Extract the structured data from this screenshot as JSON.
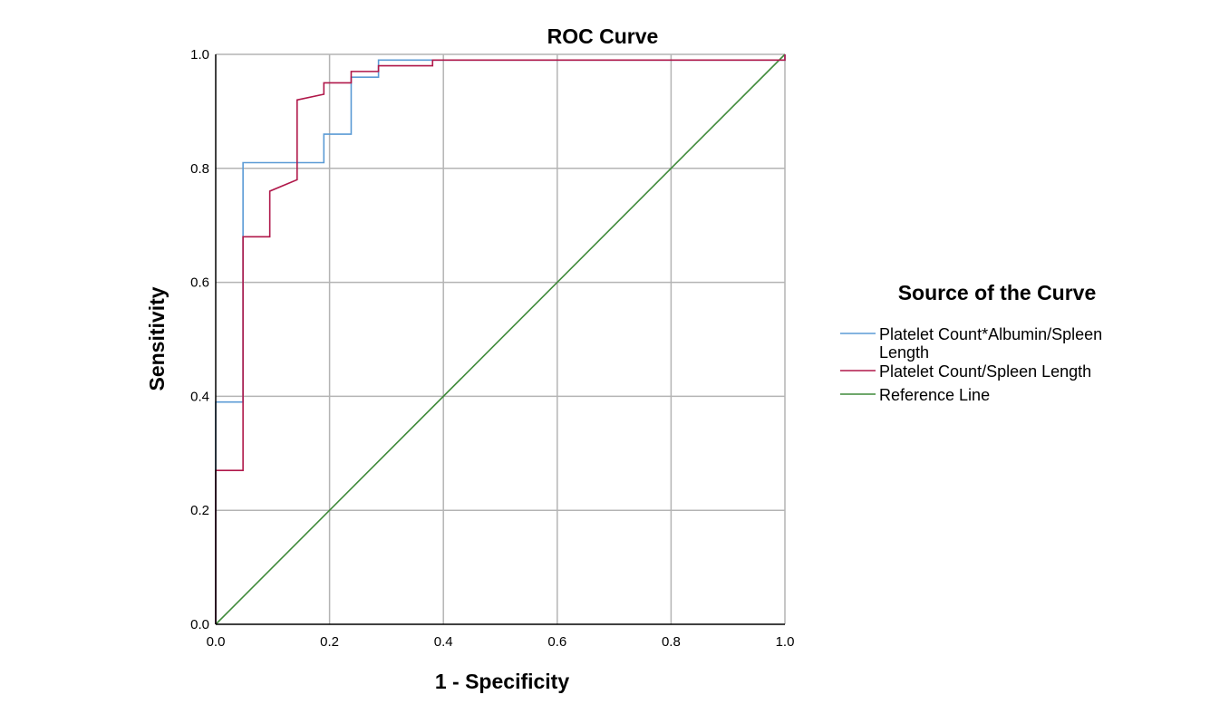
{
  "chart_data": {
    "type": "line",
    "title": "ROC Curve",
    "xlabel": "1 - Specificity",
    "ylabel": "Sensitivity",
    "xlim": [
      0,
      1
    ],
    "ylim": [
      0,
      1
    ],
    "xticks": [
      "0.0",
      "0.2",
      "0.4",
      "0.6",
      "0.8",
      "1.0"
    ],
    "yticks": [
      "0.0",
      "0.2",
      "0.4",
      "0.6",
      "0.8",
      "1.0"
    ],
    "grid": true,
    "legend": {
      "title": "Source of the Curve",
      "placement": "right"
    },
    "series": [
      {
        "name": "Platelet Count*Albumin/Spleen Length",
        "name_lines": [
          "Platelet Count*Albumin/Spleen",
          "Length"
        ],
        "color": "#5b9bd5",
        "x": [
          0,
          0,
          0,
          0.048,
          0.048,
          0.19,
          0.19,
          0.238,
          0.238,
          0.286,
          0.286,
          0.381,
          0.381,
          1.0,
          1.0
        ],
        "y": [
          0,
          0.27,
          0.39,
          0.39,
          0.81,
          0.81,
          0.86,
          0.86,
          0.96,
          0.96,
          0.99,
          0.99,
          0.99,
          0.99,
          1.0
        ]
      },
      {
        "name": "Platelet Count/Spleen Length",
        "name_lines": [
          "Platelet Count/Spleen Length"
        ],
        "color": "#b0184a",
        "x": [
          0,
          0,
          0.048,
          0.048,
          0.095,
          0.095,
          0.143,
          0.143,
          0.19,
          0.19,
          0.238,
          0.238,
          0.286,
          0.286,
          0.381,
          0.381,
          1.0,
          1.0
        ],
        "y": [
          0,
          0.27,
          0.27,
          0.68,
          0.68,
          0.76,
          0.78,
          0.92,
          0.93,
          0.95,
          0.95,
          0.97,
          0.97,
          0.98,
          0.98,
          0.99,
          0.99,
          1.0
        ]
      },
      {
        "name": "Reference Line",
        "name_lines": [
          "Reference Line"
        ],
        "color": "#3f8a3a",
        "x": [
          0,
          1
        ],
        "y": [
          0,
          1
        ]
      }
    ]
  }
}
